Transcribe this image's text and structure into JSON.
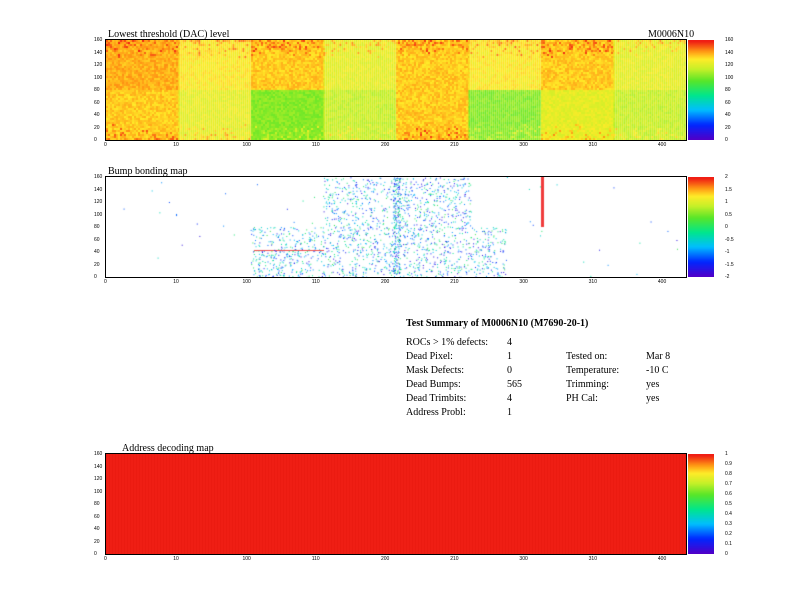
{
  "module_label": "M0006N10",
  "chart_data": [
    {
      "type": "heatmap",
      "id": "threshold",
      "title": "Lowest threshold (DAC) level",
      "xlim": [
        0,
        416
      ],
      "ylim": [
        0,
        160
      ],
      "x_ticks": [
        "0",
        "10",
        "100",
        "110",
        "200",
        "210",
        "300",
        "310",
        "400"
      ],
      "y_ticks": [
        "0",
        "20",
        "40",
        "60",
        "80",
        "100",
        "120",
        "140",
        "160"
      ],
      "color_scale": {
        "min": 0,
        "max": 160,
        "labels": [
          "0",
          "20",
          "40",
          "60",
          "80",
          "100",
          "120",
          "140",
          "160"
        ]
      },
      "roc_levels_top": [
        140,
        130,
        136,
        124,
        136,
        130,
        136,
        124
      ],
      "roc_levels_bottom": [
        136,
        124,
        104,
        116,
        136,
        104,
        124,
        116
      ]
    },
    {
      "type": "heatmap",
      "id": "bump",
      "title": "Bump bonding map",
      "xlim": [
        0,
        416
      ],
      "ylim": [
        0,
        160
      ],
      "x_ticks": [
        "0",
        "10",
        "100",
        "110",
        "200",
        "210",
        "300",
        "310",
        "400"
      ],
      "y_ticks": [
        "0",
        "20",
        "40",
        "60",
        "80",
        "100",
        "120",
        "140",
        "160"
      ],
      "color_scale": {
        "min": -2,
        "max": 2,
        "labels": [
          "-2",
          "-1.5",
          "-1",
          "-0.5",
          "0",
          "0.5",
          "1",
          "1.5",
          "2"
        ]
      }
    },
    {
      "type": "heatmap",
      "id": "address",
      "title": "Address decoding map",
      "xlim": [
        0,
        416
      ],
      "ylim": [
        0,
        160
      ],
      "x_ticks": [
        "0",
        "10",
        "100",
        "110",
        "200",
        "210",
        "300",
        "310",
        "400"
      ],
      "y_ticks": [
        "0",
        "20",
        "40",
        "60",
        "80",
        "100",
        "120",
        "140",
        "160"
      ],
      "color_scale": {
        "min": 0,
        "max": 1,
        "labels": [
          "0",
          "0.1",
          "0.2",
          "0.3",
          "0.4",
          "0.5",
          "0.6",
          "0.7",
          "0.8",
          "0.9",
          "1"
        ]
      },
      "value": 1
    }
  ],
  "summary": {
    "title": "Test Summary of M0006N10 (M7690-20-1)",
    "rows": [
      {
        "label": "ROCs > 1% defects:",
        "value": "4"
      },
      {
        "label": "Dead Pixel:",
        "value": "1"
      },
      {
        "label": "Mask Defects:",
        "value": "0"
      },
      {
        "label": "Dead Bumps:",
        "value": "565"
      },
      {
        "label": "Dead Trimbits:",
        "value": "4"
      },
      {
        "label": "Address Probl:",
        "value": "1"
      }
    ],
    "right_rows": [
      {
        "label": "Tested on:",
        "value": "Mar 8"
      },
      {
        "label": "Temperature:",
        "value": "-10 C"
      },
      {
        "label": "Trimming:",
        "value": "yes"
      },
      {
        "label": "PH Cal:",
        "value": "yes"
      }
    ]
  }
}
